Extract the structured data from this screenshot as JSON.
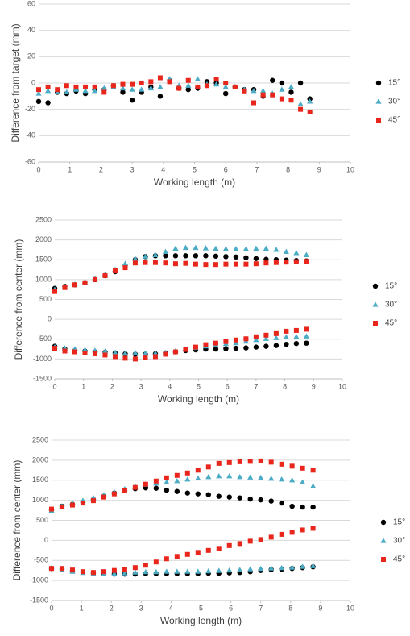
{
  "chart_data": [
    {
      "type": "scatter",
      "xlabel": "Working length (m)",
      "ylabel": "Difference from target (mm)",
      "xlim": [
        0,
        10
      ],
      "xticks": [
        0,
        1,
        2,
        3,
        4,
        5,
        6,
        7,
        8,
        9,
        10
      ],
      "ylim": [
        -60,
        60
      ],
      "yticks": [
        -60,
        -40,
        -20,
        0,
        20,
        40,
        60
      ],
      "grid": true,
      "x": [
        0,
        0.3,
        0.6,
        0.9,
        1.2,
        1.5,
        1.8,
        2.1,
        2.4,
        2.7,
        3.0,
        3.3,
        3.6,
        3.9,
        4.2,
        4.5,
        4.8,
        5.1,
        5.4,
        5.7,
        6.0,
        6.3,
        6.6,
        6.9,
        7.2,
        7.5,
        7.8,
        8.1,
        8.4,
        8.7
      ],
      "series": [
        {
          "name": "15°",
          "color": "#000000",
          "marker": "circle",
          "values": [
            -14,
            -15,
            -7,
            -8,
            -6,
            -8,
            -5,
            -5,
            -2,
            -7,
            -13,
            -7,
            -3,
            -10,
            2,
            -4,
            -5,
            -4,
            1,
            0,
            -8,
            -3,
            -5,
            -5,
            -10,
            2,
            0,
            -7,
            0,
            -12
          ]
        },
        {
          "name": "30°",
          "color": "#4bacc6",
          "marker": "triangle",
          "values": [
            -8,
            -6,
            -7,
            -7,
            -5,
            -6,
            -6,
            -4,
            -3,
            -4,
            -5,
            -5,
            -4,
            -3,
            3,
            -2,
            -2,
            3,
            -1,
            -1,
            -3,
            -3,
            -5,
            -6,
            -6,
            -8,
            -5,
            -3,
            -16,
            -14
          ]
        },
        {
          "name": "45°",
          "color": "#e8261c",
          "marker": "square",
          "values": [
            -5,
            -3,
            -5,
            -2,
            -3,
            -3,
            -3,
            -7,
            -2,
            -1,
            -1,
            0,
            1,
            4,
            1,
            -4,
            2,
            -3,
            -2,
            3,
            0,
            -3,
            -6,
            -15,
            -9,
            -9,
            -12,
            -13,
            -20,
            -22
          ]
        }
      ]
    },
    {
      "type": "scatter",
      "xlabel": "Working length (m)",
      "ylabel": "Difference from center (mm)",
      "xlim": [
        0,
        10
      ],
      "xticks": [
        0,
        1,
        2,
        3,
        4,
        5,
        6,
        7,
        8,
        9,
        10
      ],
      "ylim": [
        -1500,
        2500
      ],
      "yticks": [
        -1500,
        -1000,
        -500,
        0,
        500,
        1000,
        1500,
        2000,
        2500
      ],
      "grid": true,
      "x": [
        0,
        0.35,
        0.7,
        1.05,
        1.4,
        1.75,
        2.1,
        2.45,
        2.8,
        3.15,
        3.5,
        3.85,
        4.2,
        4.55,
        4.9,
        5.25,
        5.6,
        5.95,
        6.3,
        6.65,
        7,
        7.35,
        7.7,
        8.05,
        8.4,
        8.75,
        0,
        0.35,
        0.7,
        1.05,
        1.4,
        1.75,
        2.1,
        2.45,
        2.8,
        3.15,
        3.5,
        3.85,
        4.2,
        4.55,
        4.9,
        5.25,
        5.6,
        5.95,
        6.3,
        6.65,
        7,
        7.35,
        7.7,
        8.05,
        8.4,
        8.75
      ],
      "series": [
        {
          "name": "15°",
          "color": "#000000",
          "marker": "circle",
          "values": [
            780,
            830,
            870,
            920,
            1000,
            1100,
            1200,
            1350,
            1500,
            1580,
            1600,
            1600,
            1600,
            1600,
            1600,
            1600,
            1590,
            1580,
            1570,
            1550,
            1530,
            1510,
            1500,
            1490,
            1480,
            1470,
            -680,
            -750,
            -790,
            -800,
            -820,
            -830,
            -850,
            -870,
            -880,
            -880,
            -870,
            -850,
            -820,
            -790,
            -770,
            -750,
            -750,
            -740,
            -730,
            -720,
            -700,
            -680,
            -660,
            -630,
            -610,
            -600
          ]
        },
        {
          "name": "30°",
          "color": "#4bacc6",
          "marker": "triangle",
          "values": [
            750,
            820,
            880,
            930,
            1020,
            1120,
            1250,
            1400,
            1520,
            1580,
            1620,
            1700,
            1780,
            1800,
            1800,
            1790,
            1780,
            1770,
            1770,
            1770,
            1780,
            1780,
            1750,
            1700,
            1670,
            1620,
            -700,
            -730,
            -750,
            -770,
            -790,
            -810,
            -840,
            -860,
            -850,
            -860,
            -860,
            -840,
            -800,
            -760,
            -720,
            -680,
            -650,
            -620,
            -600,
            -560,
            -520,
            -490,
            -470,
            -450,
            -440,
            -430
          ]
        },
        {
          "name": "45°",
          "color": "#e8261c",
          "marker": "square",
          "values": [
            700,
            800,
            870,
            920,
            1000,
            1100,
            1220,
            1300,
            1420,
            1430,
            1430,
            1420,
            1400,
            1410,
            1390,
            1380,
            1380,
            1390,
            1390,
            1390,
            1400,
            1420,
            1430,
            1440,
            1450,
            1460,
            -730,
            -800,
            -820,
            -850,
            -870,
            -900,
            -940,
            -980,
            -1000,
            -970,
            -940,
            -880,
            -820,
            -760,
            -700,
            -640,
            -600,
            -560,
            -520,
            -490,
            -440,
            -400,
            -360,
            -300,
            -280,
            -250
          ]
        }
      ]
    },
    {
      "type": "scatter",
      "xlabel": "Working length (m)",
      "ylabel": "Difference from center (mm)",
      "xlim": [
        0,
        10
      ],
      "xticks": [
        0,
        1,
        2,
        3,
        4,
        5,
        6,
        7,
        8,
        9,
        10
      ],
      "ylim": [
        -1500,
        2500
      ],
      "yticks": [
        -1500,
        -1000,
        -500,
        0,
        500,
        1000,
        1500,
        2000,
        2500
      ],
      "grid": true,
      "x": [
        0,
        0.35,
        0.7,
        1.05,
        1.4,
        1.75,
        2.1,
        2.45,
        2.8,
        3.15,
        3.5,
        3.85,
        4.2,
        4.55,
        4.9,
        5.25,
        5.6,
        5.95,
        6.3,
        6.65,
        7,
        7.35,
        7.7,
        8.05,
        8.4,
        8.75,
        0,
        0.35,
        0.7,
        1.05,
        1.4,
        1.75,
        2.1,
        2.45,
        2.8,
        3.15,
        3.5,
        3.85,
        4.2,
        4.55,
        4.9,
        5.25,
        5.6,
        5.95,
        6.3,
        6.65,
        7,
        7.35,
        7.7,
        8.05,
        8.4,
        8.75
      ],
      "series": [
        {
          "name": "15°",
          "color": "#000000",
          "marker": "circle",
          "values": [
            760,
            850,
            900,
            950,
            1020,
            1100,
            1180,
            1250,
            1290,
            1310,
            1300,
            1250,
            1220,
            1180,
            1160,
            1140,
            1100,
            1080,
            1060,
            1030,
            1010,
            980,
            930,
            850,
            830,
            830,
            -700,
            -720,
            -760,
            -790,
            -820,
            -830,
            -840,
            -840,
            -840,
            -830,
            -830,
            -830,
            -830,
            -830,
            -830,
            -820,
            -820,
            -810,
            -800,
            -780,
            -750,
            -730,
            -720,
            -700,
            -680,
            -660
          ]
        },
        {
          "name": "30°",
          "color": "#4bacc6",
          "marker": "triangle",
          "values": [
            740,
            850,
            920,
            990,
            1060,
            1130,
            1200,
            1280,
            1340,
            1390,
            1420,
            1450,
            1480,
            1520,
            1550,
            1580,
            1600,
            1600,
            1580,
            1570,
            1560,
            1540,
            1520,
            1500,
            1450,
            1350,
            -690,
            -730,
            -780,
            -810,
            -830,
            -840,
            -830,
            -820,
            -800,
            -790,
            -790,
            -780,
            -780,
            -780,
            -780,
            -770,
            -760,
            -750,
            -740,
            -720,
            -710,
            -700,
            -690,
            -680,
            -660,
            -640
          ]
        },
        {
          "name": "45°",
          "color": "#e8261c",
          "marker": "square",
          "values": [
            780,
            830,
            880,
            930,
            990,
            1080,
            1160,
            1240,
            1320,
            1400,
            1480,
            1560,
            1620,
            1680,
            1750,
            1830,
            1920,
            1940,
            1960,
            1970,
            1980,
            1950,
            1900,
            1850,
            1800,
            1750,
            -700,
            -700,
            -740,
            -780,
            -800,
            -780,
            -750,
            -720,
            -680,
            -620,
            -540,
            -460,
            -400,
            -350,
            -300,
            -250,
            -200,
            -130,
            -80,
            -20,
            20,
            80,
            150,
            200,
            260,
            300
          ]
        }
      ]
    }
  ]
}
